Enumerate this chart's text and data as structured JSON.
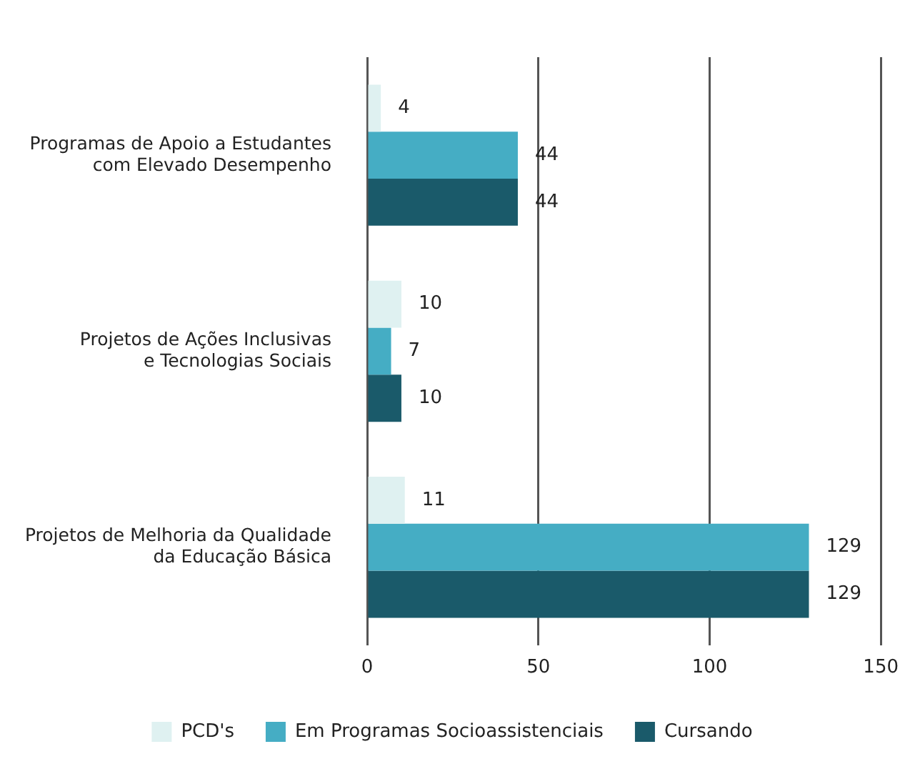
{
  "chart_data": {
    "type": "bar",
    "orientation": "horizontal",
    "categories": [
      "Programas de Apoio a Estudantes\ncom Elevado Desempenho",
      "Projetos de Ações Inclusivas\ne Tecnologias Sociais",
      "Projetos de Melhoria da Qualidade\nda Educação Básica"
    ],
    "series": [
      {
        "name": "PCD's",
        "color": "#dff1f1",
        "values": [
          4,
          10,
          11
        ]
      },
      {
        "name": "Em Programas Socioassistenciais",
        "color": "#45adc4",
        "values": [
          44,
          7,
          129
        ]
      },
      {
        "name": "Cursando",
        "color": "#1a5a6a",
        "values": [
          44,
          10,
          129
        ]
      }
    ],
    "xlim": [
      0,
      150
    ],
    "xticks": [
      0,
      50,
      100,
      150
    ],
    "grid": "x",
    "legend": "bottom",
    "data_labels": true
  }
}
